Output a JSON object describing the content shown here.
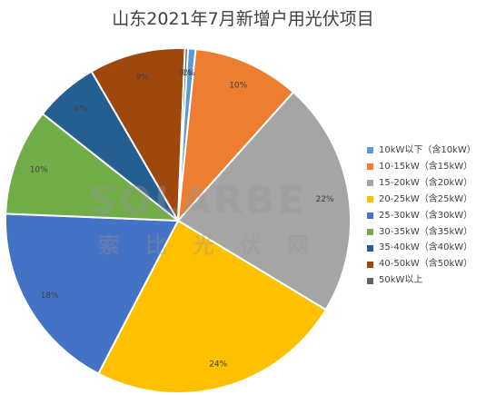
{
  "chart_data": {
    "type": "pie",
    "title": "山东2021年7月新增户用光伏项目",
    "legend_position": "right",
    "slices": [
      {
        "label": "10kW以下（含10kW）",
        "value": 1,
        "display": "1%",
        "color": "#5b9bd5"
      },
      {
        "label": "10-15kW（含15kW）",
        "value": 10,
        "display": "10%",
        "color": "#ed7d31"
      },
      {
        "label": "15-20kW（含20kW）",
        "value": 22,
        "display": "22%",
        "color": "#a5a5a5"
      },
      {
        "label": "20-25kW（含25kW）",
        "value": 24,
        "display": "24%",
        "color": "#ffc000"
      },
      {
        "label": "25-30kW（含30kW）",
        "value": 18,
        "display": "18%",
        "color": "#4472c4"
      },
      {
        "label": "30-35kW（含35kW）",
        "value": 10,
        "display": "10%",
        "color": "#70ad47"
      },
      {
        "label": "35-40kW（含40kW）",
        "value": 6,
        "display": "6%",
        "color": "#255e91"
      },
      {
        "label": "40-50kW（含50kW）",
        "value": 9,
        "display": "9%",
        "color": "#9e480e"
      },
      {
        "label": "50kW以上",
        "value": 0,
        "display": "0%",
        "color": "#636363"
      }
    ]
  },
  "watermark": {
    "brand": "SOLARBE",
    "brand_cn": "索比光伏网"
  }
}
